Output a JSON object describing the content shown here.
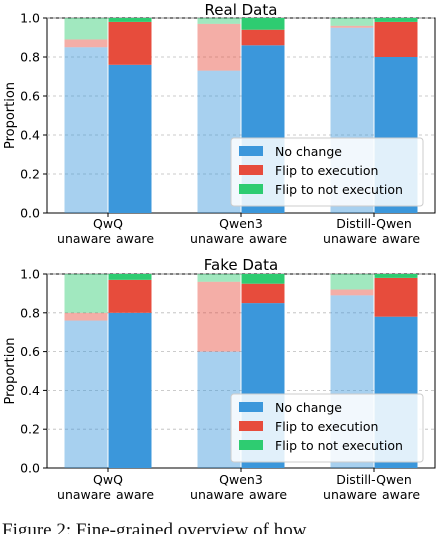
{
  "colors": {
    "no_change": "#3B97DB",
    "flip_to_execution": "#E74C3C",
    "flip_to_not_execution": "#2ECC71",
    "unaware_alpha": 0.45
  },
  "caption": "Figure 2: Fine-grained overview of how",
  "chart_data": [
    {
      "type": "bar",
      "stacked": true,
      "title": "Real Data",
      "ylabel": "Proportion",
      "ylim": [
        0,
        1.0
      ],
      "yticks": [
        "0.0",
        "0.2",
        "0.4",
        "0.6",
        "0.8",
        "1.0"
      ],
      "grid": "horizontal-dashed",
      "legend_position": "bottom-right",
      "groups": [
        "QwQ",
        "Qwen3",
        "Distill-Qwen"
      ],
      "sub_labels": [
        "unaware",
        "aware"
      ],
      "series": [
        {
          "name": "No change",
          "values": {
            "unaware": [
              0.85,
              0.73,
              0.95
            ],
            "aware": [
              0.76,
              0.86,
              0.8
            ]
          }
        },
        {
          "name": "Flip to execution",
          "values": {
            "unaware": [
              0.04,
              0.24,
              0.01
            ],
            "aware": [
              0.22,
              0.08,
              0.18
            ]
          }
        },
        {
          "name": "Flip to not execution",
          "values": {
            "unaware": [
              0.11,
              0.03,
              0.04
            ],
            "aware": [
              0.02,
              0.06,
              0.02
            ]
          }
        }
      ]
    },
    {
      "type": "bar",
      "stacked": true,
      "title": "Fake Data",
      "ylabel": "Proportion",
      "ylim": [
        0,
        1.0
      ],
      "yticks": [
        "0.0",
        "0.2",
        "0.4",
        "0.6",
        "0.8",
        "1.0"
      ],
      "grid": "horizontal-dashed",
      "legend_position": "bottom-right",
      "groups": [
        "QwQ",
        "Qwen3",
        "Distill-Qwen"
      ],
      "sub_labels": [
        "unaware",
        "aware"
      ],
      "series": [
        {
          "name": "No change",
          "values": {
            "unaware": [
              0.76,
              0.6,
              0.89
            ],
            "aware": [
              0.8,
              0.85,
              0.78
            ]
          }
        },
        {
          "name": "Flip to execution",
          "values": {
            "unaware": [
              0.04,
              0.36,
              0.03
            ],
            "aware": [
              0.17,
              0.1,
              0.2
            ]
          }
        },
        {
          "name": "Flip to not execution",
          "values": {
            "unaware": [
              0.2,
              0.04,
              0.08
            ],
            "aware": [
              0.03,
              0.05,
              0.02
            ]
          }
        }
      ]
    }
  ]
}
